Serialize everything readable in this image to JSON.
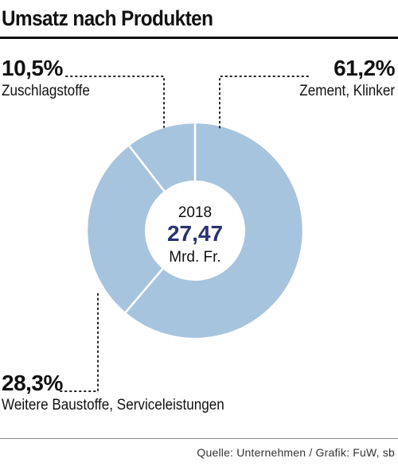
{
  "title": "Umsatz nach Produkten",
  "source": "Quelle: Unternehmen / Grafik: FuW, sb",
  "colors": {
    "slice": "#a7c4de",
    "separator": "#ffffff",
    "center_value": "#2a3171",
    "text": "#111111"
  },
  "center": {
    "year": "2018",
    "value": "27,47",
    "unit": "Mrd. Fr."
  },
  "chart_data": {
    "type": "pie",
    "title": "Umsatz nach Produkten",
    "slices": [
      {
        "label": "Zement, Klinker",
        "value": 61.2,
        "value_label": "61,2%"
      },
      {
        "label": "Weitere Baustoffe, Serviceleistungen",
        "value": 28.3,
        "value_label": "28,3%"
      },
      {
        "label": "Zuschlagstoffe",
        "value": 10.5,
        "value_label": "10,5%"
      }
    ],
    "center_text": [
      "2018",
      "27,47",
      "Mrd. Fr."
    ]
  }
}
